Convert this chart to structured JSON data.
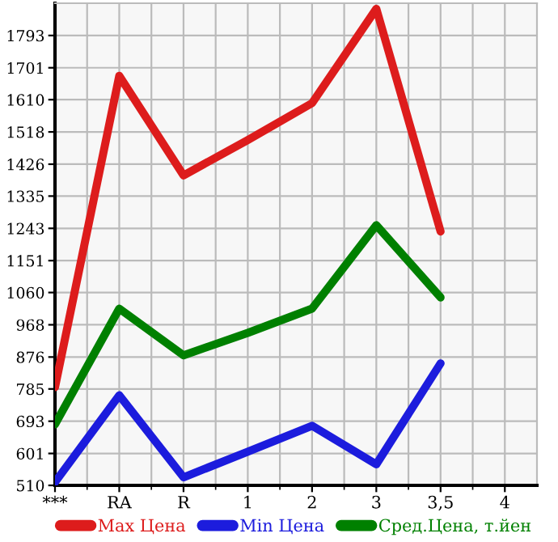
{
  "chart_data": {
    "type": "line",
    "categories": [
      "***",
      "RA",
      "R",
      "1",
      "2",
      "3",
      "3,5",
      "4"
    ],
    "series": [
      {
        "name": "Max Цена",
        "color": "#dd1c1c",
        "values": [
          790,
          1678,
          1394,
          1495,
          1600,
          1869,
          1234,
          null
        ]
      },
      {
        "name": "Min Цена",
        "color": "#1c1cdd",
        "values": [
          519,
          767,
          533,
          606,
          680,
          570,
          858,
          null
        ]
      },
      {
        "name": "Сред.Цена, т.йен",
        "color": "#008000",
        "values": [
          684,
          1014,
          881,
          945,
          1014,
          1252,
          1046,
          null
        ]
      }
    ],
    "ylim": [
      510,
      1885
    ],
    "yticks": [
      510,
      601,
      693,
      785,
      876,
      968,
      1060,
      1151,
      1243,
      1335,
      1426,
      1518,
      1610,
      1701,
      1793
    ],
    "grid": true,
    "legend": "bottom",
    "marker": "none",
    "line_style": "solid"
  }
}
